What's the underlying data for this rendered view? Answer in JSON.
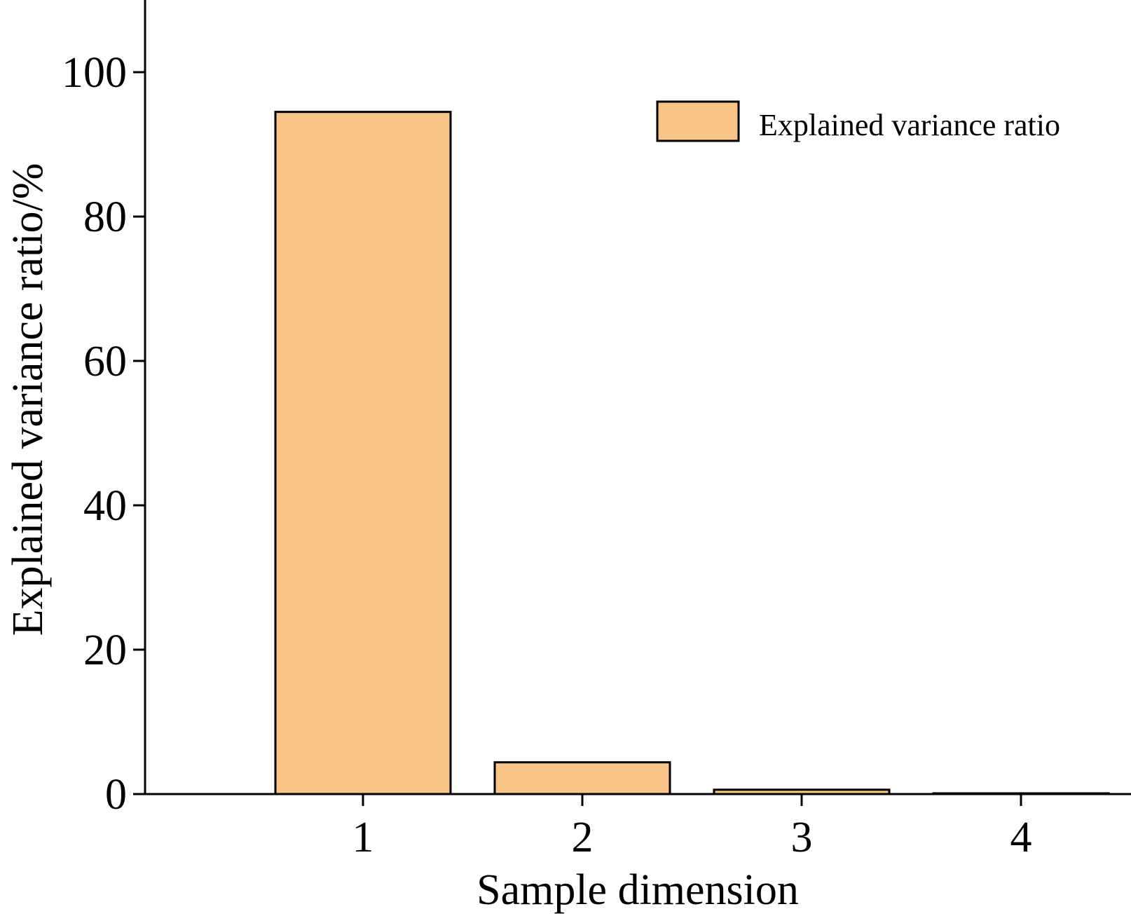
{
  "chart_data": {
    "type": "bar",
    "categories": [
      "1",
      "2",
      "3",
      "4"
    ],
    "series": [
      {
        "name": "Explained variance ratio",
        "values": [
          94.5,
          4.4,
          0.6,
          0.1
        ],
        "color": "#f8c586"
      }
    ],
    "xlabel": "Sample dimension",
    "ylabel": "Explained variance ratio/%",
    "ylim": [
      0,
      110
    ],
    "yticks": [
      "0",
      "20",
      "40",
      "60",
      "80",
      "100"
    ],
    "grid": false,
    "legend_position": "top-right"
  }
}
